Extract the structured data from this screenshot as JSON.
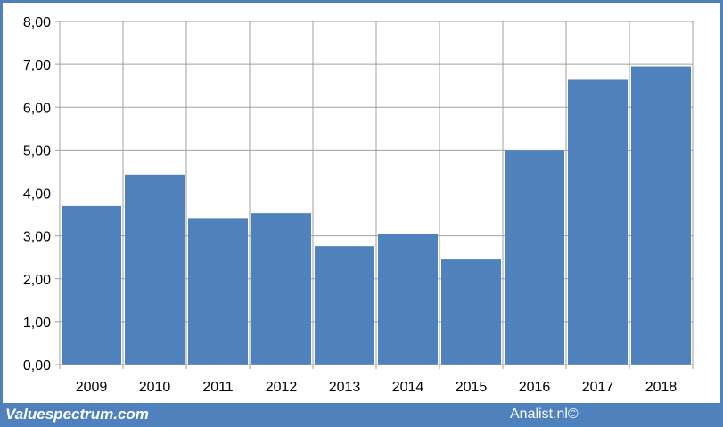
{
  "chart_data": {
    "type": "bar",
    "title": "",
    "xlabel": "",
    "ylabel": "",
    "categories": [
      "2009",
      "2010",
      "2011",
      "2012",
      "2013",
      "2014",
      "2015",
      "2016",
      "2017",
      "2018"
    ],
    "values": [
      3.7,
      4.43,
      3.4,
      3.53,
      2.76,
      3.05,
      2.45,
      5.0,
      6.64,
      6.95
    ],
    "ylim": [
      0,
      8
    ],
    "yticks": [
      "0,00",
      "1,00",
      "2,00",
      "3,00",
      "4,00",
      "5,00",
      "6,00",
      "7,00",
      "8,00"
    ],
    "grid": true,
    "bar_color": "#4f81bd",
    "legend": "none"
  },
  "footer": {
    "source_left": "Valuespectrum.com",
    "source_right": "Analist.nl©"
  },
  "colors": {
    "frame": "#4f81bd",
    "grid": "#a0a0a0"
  }
}
